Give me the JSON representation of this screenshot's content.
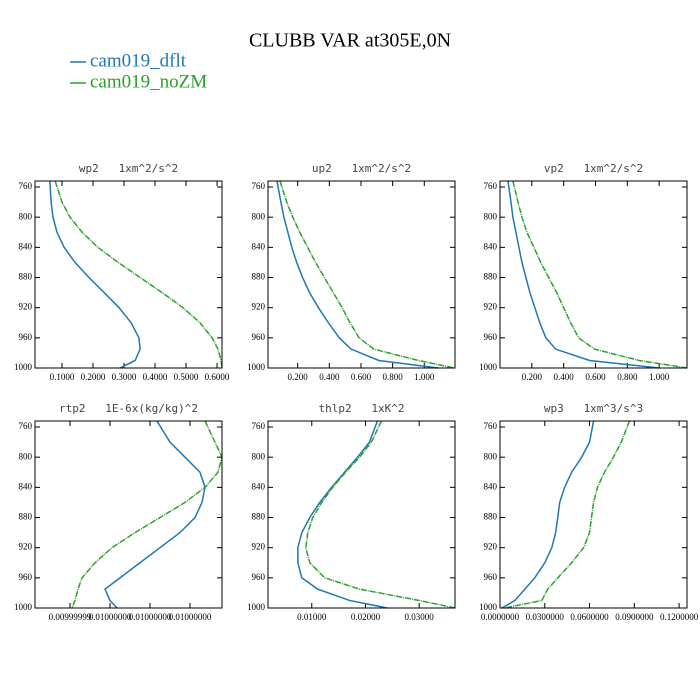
{
  "title": "CLUBB VAR at305E,0N",
  "chart_data": [
    {
      "type": "line",
      "title": "wp2   1xm^2/s^2",
      "y": [
        752,
        780,
        800,
        820,
        840,
        860,
        880,
        900,
        920,
        940,
        960,
        975,
        990,
        1000
      ],
      "ylim": [
        1000,
        752
      ],
      "yticks": [
        760,
        800,
        840,
        880,
        920,
        960,
        1000
      ],
      "xlim": [
        0.013,
        0.616
      ],
      "xticks": [
        {
          "value": 0.1,
          "label": "0.1000"
        },
        {
          "value": 0.2,
          "label": "0.2000"
        },
        {
          "value": 0.3,
          "label": "0.3000"
        },
        {
          "value": 0.4,
          "label": "0.4000"
        },
        {
          "value": 0.5,
          "label": "0.5000"
        },
        {
          "value": 0.6,
          "label": "0.6000"
        }
      ],
      "series": [
        {
          "name": "cam019_dflt",
          "color": "#1f77b4",
          "values": [
            0.061,
            0.065,
            0.071,
            0.084,
            0.107,
            0.142,
            0.187,
            0.236,
            0.284,
            0.323,
            0.348,
            0.352,
            0.336,
            0.287
          ]
        },
        {
          "name": "cam019_noZM",
          "color": "#2ca02c",
          "values": [
            0.078,
            0.1,
            0.126,
            0.165,
            0.216,
            0.281,
            0.352,
            0.423,
            0.49,
            0.545,
            0.584,
            0.603,
            0.613,
            0.616
          ]
        }
      ]
    },
    {
      "type": "line",
      "title": "up2   1xm^2/s^2",
      "y": [
        752,
        780,
        800,
        820,
        840,
        860,
        880,
        900,
        920,
        940,
        960,
        975,
        990,
        1000
      ],
      "ylim": [
        1000,
        752
      ],
      "yticks": [
        760,
        800,
        840,
        880,
        920,
        960,
        1000
      ],
      "xlim": [
        0.0125,
        1.194
      ],
      "xticks": [
        {
          "value": 0.2,
          "label": "0.200"
        },
        {
          "value": 0.4,
          "label": "0.400"
        },
        {
          "value": 0.6,
          "label": "0.600"
        },
        {
          "value": 0.8,
          "label": "0.800"
        },
        {
          "value": 1,
          "label": "1.000"
        }
      ],
      "series": [
        {
          "name": "cam019_dflt",
          "color": "#1f77b4",
          "values": [
            0.069,
            0.094,
            0.113,
            0.138,
            0.163,
            0.194,
            0.231,
            0.275,
            0.331,
            0.394,
            0.463,
            0.538,
            0.713,
            1.088
          ]
        },
        {
          "name": "cam019_noZM",
          "color": "#2ca02c",
          "values": [
            0.088,
            0.131,
            0.169,
            0.213,
            0.263,
            0.313,
            0.369,
            0.425,
            0.481,
            0.531,
            0.588,
            0.681,
            0.963,
            1.188
          ]
        }
      ]
    },
    {
      "type": "line",
      "title": "vp2   1xm^2/s^2",
      "y": [
        752,
        780,
        800,
        820,
        840,
        860,
        880,
        900,
        920,
        940,
        960,
        975,
        990,
        1000
      ],
      "ylim": [
        1000,
        752
      ],
      "yticks": [
        760,
        800,
        840,
        880,
        920,
        960,
        1000
      ],
      "xlim": [
        0,
        1.175
      ],
      "xticks": [
        {
          "value": 0.2,
          "label": "0.200"
        },
        {
          "value": 0.4,
          "label": "0.400"
        },
        {
          "value": 0.6,
          "label": "0.600"
        },
        {
          "value": 0.8,
          "label": "0.800"
        },
        {
          "value": 1,
          "label": "1.000"
        }
      ],
      "series": [
        {
          "name": "cam019_dflt",
          "color": "#1f77b4",
          "values": [
            0.05,
            0.069,
            0.081,
            0.1,
            0.119,
            0.138,
            0.163,
            0.188,
            0.219,
            0.25,
            0.288,
            0.35,
            0.563,
            1.0
          ]
        },
        {
          "name": "cam019_noZM",
          "color": "#2ca02c",
          "values": [
            0.081,
            0.113,
            0.138,
            0.169,
            0.213,
            0.256,
            0.306,
            0.356,
            0.4,
            0.444,
            0.494,
            0.594,
            0.875,
            1.175
          ]
        }
      ]
    },
    {
      "type": "line",
      "title": "rtp2   1E-6x(kg/kg)^2",
      "y": [
        752,
        780,
        800,
        820,
        840,
        860,
        880,
        900,
        920,
        940,
        960,
        975,
        990,
        1000
      ],
      "ylim": [
        1000,
        752
      ],
      "yticks": [
        760,
        800,
        840,
        880,
        920,
        960,
        1000
      ],
      "xlim": [
        0.009999988,
        0.0100000067
      ],
      "xticks": [
        {
          "value": 0.0099999915,
          "label": "0.00999999"
        },
        {
          "value": 0.0099999955,
          "label": "0.01000000"
        },
        {
          "value": 0.0099999995,
          "label": "0.01000000"
        },
        {
          "value": 0.0100000035,
          "label": "0.01000000"
        }
      ],
      "series": [
        {
          "name": "cam019_dflt",
          "color": "#1f77b4",
          "values": [
            0.0100000002,
            0.0100000015,
            0.010000003,
            0.0100000045,
            0.010000005,
            0.0100000047,
            0.010000004,
            0.0100000025,
            0.0100000005,
            0.0099999985,
            0.0099999965,
            0.009999995,
            0.0099999955,
            0.0099999962
          ]
        },
        {
          "name": "cam019_noZM",
          "color": "#2ca02c",
          "values": [
            0.010000005,
            0.010000006,
            0.0100000067,
            0.0100000063,
            0.010000005,
            0.010000003,
            0.0100000005,
            0.009999998,
            0.0099999957,
            0.009999994,
            0.0099999927,
            0.0099999923,
            0.009999992,
            0.0099999917
          ]
        }
      ]
    },
    {
      "type": "line",
      "title": "thlp2   1xK^2",
      "y": [
        752,
        780,
        800,
        820,
        840,
        860,
        880,
        900,
        920,
        940,
        960,
        975,
        990,
        1000
      ],
      "ylim": [
        1000,
        752
      ],
      "yticks": [
        760,
        800,
        840,
        880,
        920,
        960,
        1000
      ],
      "xlim": [
        0.00185,
        0.03667
      ],
      "xticks": [
        {
          "value": 0.01,
          "label": "0.01000"
        },
        {
          "value": 0.02,
          "label": "0.02000"
        },
        {
          "value": 0.03,
          "label": "0.03000"
        }
      ],
      "series": [
        {
          "name": "cam019_dflt",
          "color": "#1f77b4",
          "values": [
            0.02222,
            0.02074,
            0.01852,
            0.01611,
            0.0137,
            0.01148,
            0.00963,
            0.00815,
            0.00741,
            0.00741,
            0.00815,
            0.01111,
            0.01704,
            0.02407
          ]
        },
        {
          "name": "cam019_noZM",
          "color": "#2ca02c",
          "values": [
            0.02296,
            0.02111,
            0.01889,
            0.01629,
            0.01389,
            0.01185,
            0.01018,
            0.00926,
            0.00889,
            0.00963,
            0.01241,
            0.01889,
            0.03,
            0.03666
          ]
        }
      ]
    },
    {
      "type": "line",
      "title": "wp3   1xm^3/s^3",
      "y": [
        752,
        780,
        800,
        820,
        840,
        860,
        880,
        900,
        920,
        940,
        960,
        975,
        990,
        1000
      ],
      "ylim": [
        1000,
        752
      ],
      "yticks": [
        760,
        800,
        840,
        880,
        920,
        960,
        1000
      ],
      "xlim": [
        0,
        0.1253
      ],
      "xticks": [
        {
          "value": 0,
          "label": "0.0000000"
        },
        {
          "value": 0.03,
          "label": "0.0300000"
        },
        {
          "value": 0.06,
          "label": "0.0600000"
        },
        {
          "value": 0.09,
          "label": "0.0900000"
        },
        {
          "value": 0.12,
          "label": "0.1200000"
        }
      ],
      "series": [
        {
          "name": "cam019_dflt",
          "color": "#1f77b4",
          "values": [
            0.0627,
            0.06,
            0.0547,
            0.048,
            0.0433,
            0.04,
            0.0387,
            0.0373,
            0.0347,
            0.03,
            0.0233,
            0.0167,
            0.01,
            0.0013
          ]
        },
        {
          "name": "cam019_noZM",
          "color": "#2ca02c",
          "values": [
            0.0867,
            0.0813,
            0.076,
            0.07,
            0.0653,
            0.0627,
            0.0613,
            0.06,
            0.056,
            0.048,
            0.0387,
            0.032,
            0.028,
            0.0033
          ]
        }
      ]
    }
  ]
}
